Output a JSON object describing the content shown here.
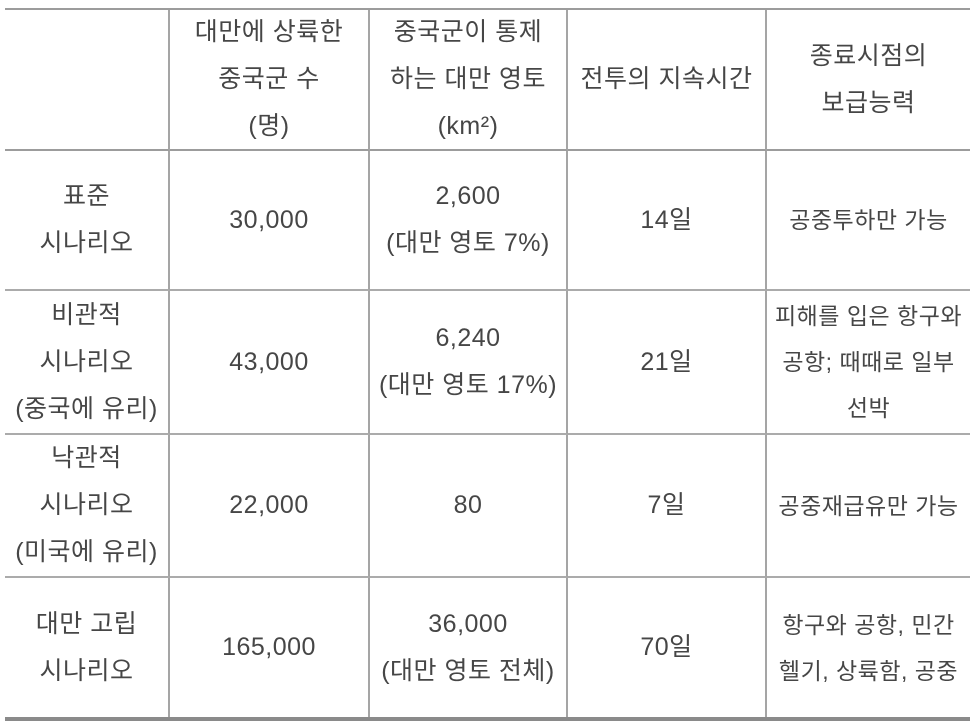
{
  "table": {
    "header": {
      "col1_lines": [],
      "col2_lines": [
        "대만에 상륙한",
        "중국군 수",
        "(명)"
      ],
      "col3_lines": [
        "중국군이 통제",
        "하는 대만 영토",
        "(km²)"
      ],
      "col4_lines": [
        "전투의 지속시간"
      ],
      "col5_lines": [
        "종료시점의",
        "보급능력"
      ]
    },
    "rows": [
      {
        "scenario_lines": [
          "표준",
          "시나리오"
        ],
        "troops": "30,000",
        "territory_lines": [
          "2,600",
          "(대만 영토 7%)"
        ],
        "duration": "14일",
        "supply_lines": [
          "공중투하만 가능"
        ]
      },
      {
        "scenario_lines": [
          "비관적",
          "시나리오",
          "(중국에 유리)"
        ],
        "troops": "43,000",
        "territory_lines": [
          "6,240",
          "(대만 영토 17%)"
        ],
        "duration": "21일",
        "supply_lines": [
          "피해를 입은 항구와",
          "공항; 때때로 일부",
          "선박"
        ]
      },
      {
        "scenario_lines": [
          "낙관적",
          "시나리오",
          "(미국에 유리)"
        ],
        "troops": "22,000",
        "territory_lines": [
          "80"
        ],
        "duration": "7일",
        "supply_lines": [
          "공중재급유만 가능"
        ]
      },
      {
        "scenario_lines": [
          "대만 고립",
          "시나리오"
        ],
        "troops": "165,000",
        "territory_lines": [
          "36,000",
          "(대만 영토 전체)"
        ],
        "duration": "70일",
        "supply_lines": [
          "항구와 공항, 민간",
          "헬기, 상륙함, 공중"
        ]
      }
    ]
  }
}
